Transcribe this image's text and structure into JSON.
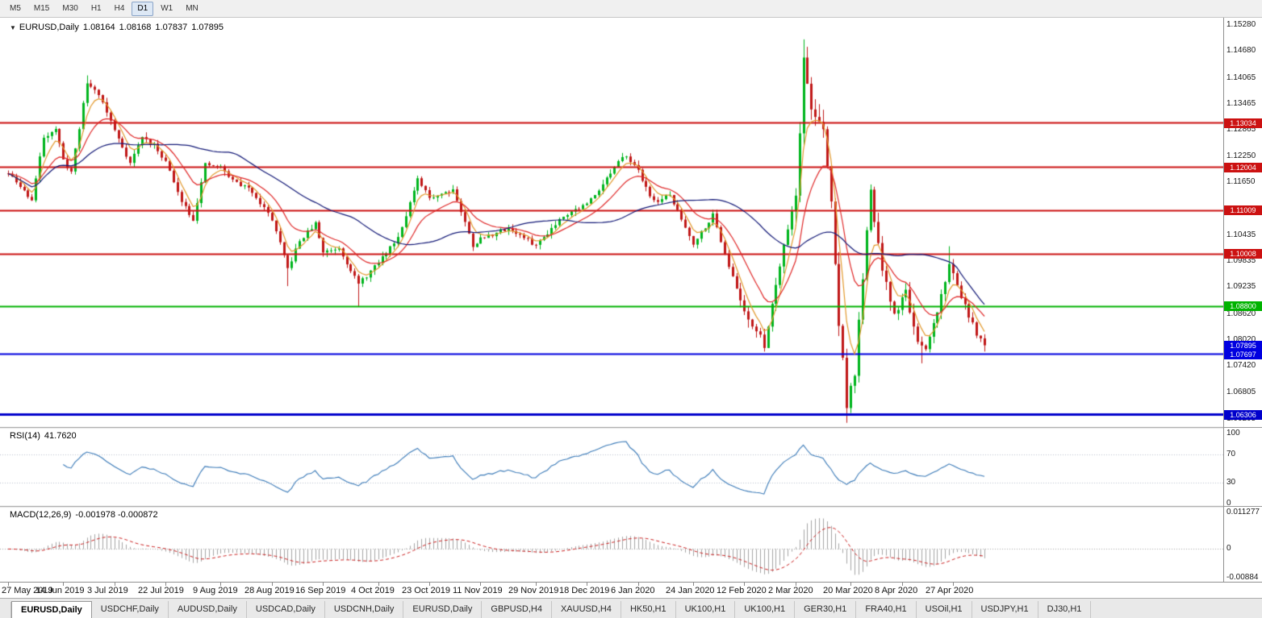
{
  "toolbar": {
    "timeframes": [
      {
        "label": "M5"
      },
      {
        "label": "M15"
      },
      {
        "label": "M30"
      },
      {
        "label": "H1"
      },
      {
        "label": "H4"
      },
      {
        "label": "D1",
        "active": true
      },
      {
        "label": "W1"
      },
      {
        "label": "MN"
      }
    ]
  },
  "chart_header": {
    "collapse_icon": "▼",
    "symbol": "EURUSD,Daily",
    "open": "1.08164",
    "high": "1.08168",
    "low": "1.07837",
    "close": "1.07895"
  },
  "price_axis_labels": [
    "1.15280",
    "1.14680",
    "1.14065",
    "1.13465",
    "1.12865",
    "1.12250",
    "1.11650",
    "1.10435",
    "1.09835",
    "1.09235",
    "1.08620",
    "1.08020",
    "1.07420",
    "1.06805",
    "1.06205"
  ],
  "rsi": {
    "name": "RSI(14)",
    "value": "41.7620",
    "period": 14,
    "axis_labels": [
      "100",
      "70",
      "30",
      "0"
    ],
    "axis_values": [
      100,
      70,
      30,
      0
    ],
    "axis_max": 107,
    "axis_min": -4,
    "levels": [
      70,
      30
    ],
    "line_color": "#3a7ab8"
  },
  "macd": {
    "name": "MACD(12,26,9)",
    "value": "-0.001978 -0.000872",
    "fast": 12,
    "slow": 26,
    "signal": 9,
    "axis_labels": [
      "0.011277",
      "0",
      "-0.00884"
    ],
    "axis_values": [
      0.011277,
      0,
      -0.00884
    ],
    "axis_max": 0.01277,
    "axis_min": -0.01008,
    "hist_color": "#a5a5a5",
    "signal_color": "#cc2222",
    "zero_color": "#a8a8a8"
  },
  "date_axis": {
    "labels": [
      "27 May 2019",
      "14 Jun 2019",
      "3 Jul 2019",
      "22 Jul 2019",
      "9 Aug 2019",
      "28 Aug 2019",
      "16 Sep 2019",
      "4 Oct 2019",
      "23 Oct 2019",
      "11 Nov 2019",
      "29 Nov 2019",
      "18 Dec 2019",
      "6 Jan 2020",
      "24 Jan 2020",
      "12 Feb 2020",
      "2 Mar 2020",
      "20 Mar 2020",
      "8 Apr 2020",
      "27 Apr 2020"
    ],
    "indices": [
      0,
      14,
      27,
      40,
      54,
      67,
      80,
      94,
      107,
      120,
      134,
      147,
      160,
      174,
      187,
      200,
      214,
      227,
      240
    ]
  },
  "tabs": [
    {
      "label": "EURUSD,Daily",
      "active": true
    },
    {
      "label": "USDCHF,Daily"
    },
    {
      "label": "AUDUSD,Daily"
    },
    {
      "label": "USDCAD,Daily"
    },
    {
      "label": "USDCNH,Daily"
    },
    {
      "label": "EURUSD,Daily"
    },
    {
      "label": "GBPUSD,H4"
    },
    {
      "label": "XAUUSD,H4"
    },
    {
      "label": "HK50,H1"
    },
    {
      "label": "UK100,H1"
    },
    {
      "label": "UK100,H1"
    },
    {
      "label": "GER30,H1"
    },
    {
      "label": "FRA40,H1"
    },
    {
      "label": "USOil,H1"
    },
    {
      "label": "USDJPY,H1"
    },
    {
      "label": "DJ30,H1"
    }
  ],
  "chart_data": {
    "type": "candlestick",
    "symbol": "EURUSD",
    "timeframe": "Daily",
    "candle_count": 249,
    "last_close": 1.07895,
    "seed": 11,
    "up_color": "#00b51e",
    "down_color": "#c01818",
    "axis": {
      "price_max": 1.1545,
      "price_min": 1.0601
    },
    "waypoints": [
      [
        0,
        1.1185
      ],
      [
        3,
        1.1155
      ],
      [
        6,
        1.1125
      ],
      [
        9,
        1.127
      ],
      [
        12,
        1.129
      ],
      [
        14,
        1.1215
      ],
      [
        16,
        1.119
      ],
      [
        20,
        1.1395
      ],
      [
        23,
        1.137
      ],
      [
        27,
        1.1285
      ],
      [
        31,
        1.121
      ],
      [
        34,
        1.127
      ],
      [
        37,
        1.125
      ],
      [
        40,
        1.1215
      ],
      [
        43,
        1.114
      ],
      [
        47,
        1.108
      ],
      [
        50,
        1.1205
      ],
      [
        54,
        1.12
      ],
      [
        57,
        1.117
      ],
      [
        62,
        1.1145
      ],
      [
        67,
        1.108
      ],
      [
        71,
        1.0965
      ],
      [
        74,
        1.103
      ],
      [
        78,
        1.107
      ],
      [
        80,
        1.1005
      ],
      [
        84,
        1.1015
      ],
      [
        89,
        1.093
      ],
      [
        94,
        1.098
      ],
      [
        99,
        1.104
      ],
      [
        104,
        1.117
      ],
      [
        107,
        1.113
      ],
      [
        113,
        1.115
      ],
      [
        118,
        1.102
      ],
      [
        120,
        1.1035
      ],
      [
        127,
        1.106
      ],
      [
        134,
        1.102
      ],
      [
        141,
        1.109
      ],
      [
        147,
        1.1115
      ],
      [
        155,
        1.121
      ],
      [
        157,
        1.123
      ],
      [
        160,
        1.119
      ],
      [
        164,
        1.112
      ],
      [
        168,
        1.1135
      ],
      [
        174,
        1.1025
      ],
      [
        179,
        1.109
      ],
      [
        184,
        1.0945
      ],
      [
        187,
        1.087
      ],
      [
        192,
        1.079
      ],
      [
        197,
        1.1025
      ],
      [
        200,
        1.1135
      ],
      [
        202,
        1.1445
      ],
      [
        204,
        1.134
      ],
      [
        207,
        1.128
      ],
      [
        209,
        1.112
      ],
      [
        211,
        1.084
      ],
      [
        213,
        1.066
      ],
      [
        215,
        1.072
      ],
      [
        217,
        1.095
      ],
      [
        219,
        1.114
      ],
      [
        222,
        1.096
      ],
      [
        225,
        1.086
      ],
      [
        228,
        1.0915
      ],
      [
        231,
        1.079
      ],
      [
        233,
        1.0775
      ],
      [
        236,
        1.087
      ],
      [
        239,
        1.0975
      ],
      [
        241,
        1.093
      ],
      [
        244,
        1.0855
      ],
      [
        246,
        1.0815
      ],
      [
        248,
        1.07895
      ]
    ],
    "volatility": [
      {
        "from": 0,
        "to": 185,
        "w": 0.002
      },
      {
        "from": 186,
        "to": 199,
        "w": 0.0035
      },
      {
        "from": 200,
        "to": 216,
        "w": 0.0065
      },
      {
        "from": 217,
        "to": 230,
        "w": 0.004
      },
      {
        "from": 231,
        "to": 248,
        "w": 0.003
      }
    ],
    "extremes": [
      {
        "i": 20,
        "high": 1.1412
      },
      {
        "i": 71,
        "low": 1.0926
      },
      {
        "i": 89,
        "low": 1.0879
      },
      {
        "i": 192,
        "low": 1.0778
      },
      {
        "i": 202,
        "high": 1.1495
      },
      {
        "i": 213,
        "low": 1.0636
      },
      {
        "i": 232,
        "low": 1.0748
      },
      {
        "i": 239,
        "high": 1.1018
      }
    ],
    "levels": [
      {
        "label": "1.13034",
        "value": 1.13034,
        "color": "#cc1111",
        "line_width": 2
      },
      {
        "label": "1.12004",
        "value": 1.12004,
        "color": "#cc1111",
        "line_width": 2
      },
      {
        "label": "1.11009",
        "value": 1.11009,
        "color": "#cc1111",
        "line_width": 2
      },
      {
        "label": "1.10008",
        "value": 1.10008,
        "color": "#cc1111",
        "line_width": 2
      },
      {
        "label": "1.08800",
        "value": 1.088,
        "color": "#00b300",
        "line_width": 2
      },
      {
        "label": "1.07895",
        "value": 1.07895,
        "color": "#0000e0",
        "line_width": 0
      },
      {
        "label": "1.07697",
        "value": 1.07697,
        "color": "#0000e0",
        "line_width": 2
      },
      {
        "label": "1.06306",
        "value": 1.06306,
        "color": "#0000cc",
        "line_width": 3
      }
    ],
    "moving_averages": [
      {
        "period": 5,
        "type": "ema",
        "color": "#e39a2e"
      },
      {
        "period": 14,
        "type": "ema",
        "color": "#e02828"
      },
      {
        "period": 40,
        "type": "sma",
        "color": "#141a78"
      }
    ]
  }
}
